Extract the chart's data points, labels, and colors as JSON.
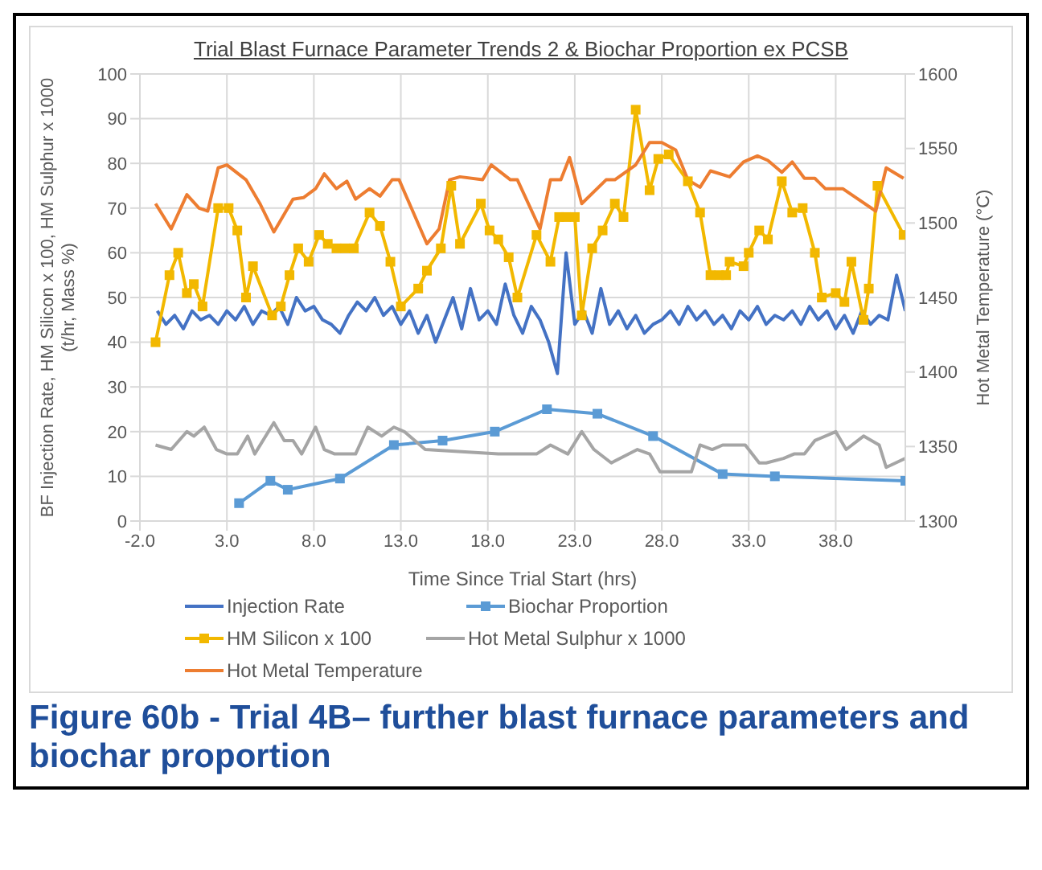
{
  "chart_data": {
    "type": "line",
    "title": "Trial Blast Furnace Parameter Trends 2 & Biochar Proportion ex PCSB",
    "xlabel": "Time Since Trial Start (hrs)",
    "ylabel": "BF Injection Rate, HM Silicon x 100, HM Sulphur x 1000 (t/hr, Mass %)",
    "y2label": "Hot Metal Temperature (°C)",
    "xlim": [
      -2,
      42
    ],
    "xticks": [
      {
        "value": -2,
        "label": "-2.0"
      },
      {
        "value": 3,
        "label": "3.0"
      },
      {
        "value": 8,
        "label": "8.0"
      },
      {
        "value": 13,
        "label": "13.0"
      },
      {
        "value": 18,
        "label": "18.0"
      },
      {
        "value": 23,
        "label": "23.0"
      },
      {
        "value": 28,
        "label": "28.0"
      },
      {
        "value": 33,
        "label": "33.0"
      },
      {
        "value": 38,
        "label": "38.0"
      }
    ],
    "ylim": [
      0,
      100
    ],
    "yticks": [
      0,
      10,
      20,
      30,
      40,
      50,
      60,
      70,
      80,
      90,
      100
    ],
    "y2lim": [
      1300,
      1600
    ],
    "y2ticks": [
      1300,
      1350,
      1400,
      1450,
      1500,
      1550,
      1600
    ],
    "grid": true,
    "legend": "bottom",
    "line_style": "solid",
    "series": [
      {
        "name": "Injection Rate",
        "color": "#4472c4",
        "marker": "none",
        "x": [
          -1,
          -0.5,
          0,
          0.5,
          1,
          1.5,
          2,
          2.5,
          3,
          3.5,
          4,
          4.5,
          5,
          5.5,
          6,
          6.5,
          7,
          7.5,
          8,
          8.5,
          9,
          9.5,
          10,
          10.5,
          11,
          11.5,
          12,
          12.5,
          13,
          13.5,
          14,
          14.5,
          15,
          15.5,
          16,
          16.5,
          17,
          17.5,
          18,
          18.5,
          19,
          19.5,
          20,
          20.5,
          21,
          21.5,
          22,
          22.5,
          23,
          23.5,
          24,
          24.5,
          25,
          25.5,
          26,
          26.5,
          27,
          27.5,
          28,
          28.5,
          29,
          29.5,
          30,
          30.5,
          31,
          31.5,
          32,
          32.5,
          33,
          33.5,
          34,
          34.5,
          35,
          35.5,
          36,
          36.5,
          37,
          37.5,
          38,
          38.5,
          39,
          39.5,
          40,
          40.5,
          41,
          41.5,
          42
        ],
        "values": [
          47,
          44,
          46,
          43,
          47,
          45,
          46,
          44,
          47,
          45,
          48,
          44,
          47,
          46,
          48,
          44,
          50,
          47,
          48,
          45,
          44,
          42,
          46,
          49,
          47,
          50,
          46,
          48,
          44,
          47,
          42,
          46,
          40,
          45,
          50,
          43,
          52,
          45,
          47,
          44,
          53,
          46,
          42,
          48,
          45,
          40,
          33,
          60,
          44,
          47,
          42,
          52,
          44,
          47,
          43,
          46,
          42,
          44,
          45,
          47,
          44,
          48,
          45,
          47,
          44,
          46,
          43,
          47,
          45,
          48,
          44,
          46,
          45,
          47,
          44,
          48,
          45,
          47,
          43,
          46,
          42,
          47,
          44,
          46,
          45,
          55,
          47
        ]
      },
      {
        "name": "Biochar Proportion",
        "color": "#5b9bd5",
        "marker": "square",
        "x": [
          3.7,
          5.5,
          6.5,
          9.5,
          12.6,
          15.4,
          18.4,
          21.4,
          24.3,
          27.5,
          31.5,
          34.5,
          42
        ],
        "values": [
          4,
          9,
          7,
          9.5,
          17,
          18,
          20,
          25,
          24,
          19,
          10.5,
          10,
          9
        ]
      },
      {
        "name": "HM Silicon x 100",
        "color": "#f2b800",
        "marker": "square",
        "x": [
          -1.1,
          -0.3,
          0.2,
          0.7,
          1.1,
          1.6,
          2.5,
          3.1,
          3.6,
          4.1,
          4.5,
          5.6,
          6.1,
          6.6,
          7.1,
          7.7,
          8.3,
          8.8,
          9.3,
          9.8,
          10.3,
          11.2,
          11.8,
          12.4,
          13,
          14,
          14.5,
          15.3,
          15.9,
          16.4,
          17.6,
          18.1,
          18.6,
          19.2,
          19.7,
          20.8,
          21.6,
          22.1,
          22.5,
          23,
          23.4,
          24,
          24.6,
          25.3,
          25.8,
          26.5,
          27.3,
          27.8,
          28.4,
          29.5,
          30.2,
          30.8,
          31.3,
          31.7,
          31.9,
          32.7,
          33,
          33.6,
          34.1,
          34.9,
          35.5,
          36.1,
          36.8,
          37.2,
          38,
          38.5,
          38.9,
          39.6,
          39.9,
          40.4,
          41.9
        ],
        "values": [
          40,
          55,
          60,
          51,
          53,
          48,
          70,
          70,
          65,
          50,
          57,
          46,
          48,
          55,
          61,
          58,
          64,
          62,
          61,
          61,
          61,
          69,
          66,
          58,
          48,
          52,
          56,
          61,
          75,
          62,
          71,
          65,
          63,
          59,
          50,
          64,
          58,
          68,
          68,
          68,
          46,
          61,
          65,
          71,
          68,
          92,
          74,
          81,
          82,
          76,
          69,
          55,
          55,
          55,
          58,
          57,
          60,
          65,
          63,
          76,
          69,
          70,
          60,
          50,
          51,
          49,
          58,
          45,
          52,
          75,
          64
        ]
      },
      {
        "name": "Hot Metal Sulphur x 1000",
        "color": "#a5a5a5",
        "marker": "none",
        "x": [
          -1.1,
          -0.2,
          0.7,
          1.1,
          1.7,
          2.4,
          3,
          3.6,
          4.2,
          4.6,
          5.7,
          6.3,
          6.8,
          7.3,
          8.1,
          8.6,
          9.2,
          10.4,
          11.1,
          11.9,
          12.6,
          13.2,
          14.4,
          18.6,
          20.8,
          21.6,
          22.6,
          23.4,
          24.1,
          25.1,
          26.6,
          27.3,
          27.9,
          29.7,
          30.2,
          30.9,
          31.5,
          32.8,
          33.6,
          34,
          35,
          35.6,
          36.2,
          36.8,
          38,
          38.6,
          39.6,
          40.5,
          40.9,
          42
        ],
        "values": [
          17,
          16,
          20,
          19,
          21,
          16,
          15,
          15,
          19,
          15,
          22,
          18,
          18,
          15,
          21,
          16,
          15,
          15,
          21,
          19,
          21,
          20,
          16,
          15,
          15,
          17,
          15,
          20,
          16,
          13,
          16,
          15,
          11,
          11,
          17,
          16,
          17,
          17,
          13,
          13,
          14,
          15,
          15,
          18,
          20,
          16,
          19,
          17,
          12,
          14
        ]
      },
      {
        "name": "Hot Metal Temperature",
        "color": "#ed7d31",
        "marker": "none",
        "axis": "y2",
        "x": [
          -1.1,
          -0.2,
          0.7,
          1.4,
          1.9,
          2.5,
          3,
          4.1,
          4.9,
          5.7,
          6.8,
          7.4,
          8.1,
          8.6,
          9.3,
          9.9,
          10.4,
          11.2,
          11.8,
          12.5,
          12.9,
          14.5,
          15.2,
          15.8,
          16.4,
          17.7,
          18.2,
          19.3,
          19.7,
          21,
          21.6,
          22.2,
          22.7,
          23.4,
          24.8,
          25.3,
          26.5,
          27.3,
          28,
          28.8,
          29.5,
          30.2,
          30.8,
          31.9,
          32.7,
          33.5,
          34.1,
          34.9,
          35.5,
          36.2,
          36.8,
          37.4,
          38.4,
          40.3,
          40.9,
          41.9
        ],
        "values": [
          1513,
          1496,
          1519,
          1510,
          1508,
          1537,
          1539,
          1529,
          1513,
          1494,
          1516,
          1517,
          1523,
          1533,
          1523,
          1528,
          1516,
          1523,
          1518,
          1529,
          1529,
          1486,
          1496,
          1529,
          1531,
          1529,
          1539,
          1529,
          1529,
          1496,
          1529,
          1529,
          1544,
          1513,
          1529,
          1529,
          1539,
          1554,
          1554,
          1549,
          1529,
          1524,
          1535,
          1531,
          1541,
          1545,
          1542,
          1534,
          1541,
          1530,
          1530,
          1523,
          1523,
          1508,
          1537,
          1530
        ]
      }
    ],
    "annotations": [
      "Figure 60b - Trial 4B– further blast furnace parameters and biochar proportion"
    ]
  }
}
